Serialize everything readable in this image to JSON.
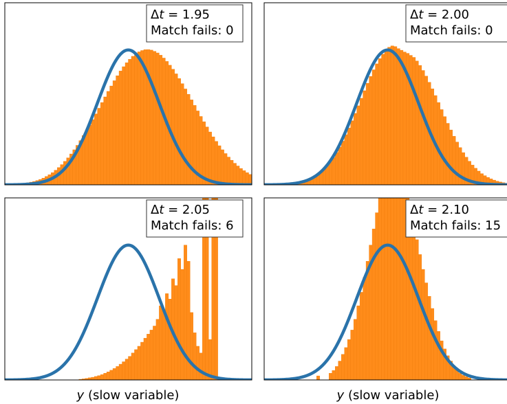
{
  "colors": {
    "histogram": "#ff8c1a",
    "histogram_edge": "#f07d0a",
    "gaussian": "#2a73aa",
    "frame": "#000000"
  },
  "chart_data": [
    {
      "type": "bar",
      "panel": "top-left",
      "annotation": {
        "dt_symbol": "Δ",
        "dt_var": "t",
        "dt_text": " = 1.95",
        "fails_text": "Match fails: 0"
      },
      "xlabel": "",
      "xlim": [
        -4,
        4
      ],
      "ylim": [
        0,
        1.35
      ],
      "gaussian": {
        "mean": 0,
        "sd": 1,
        "peak": 1.0
      },
      "histogram": {
        "x_start": -3.4,
        "bin_width": 0.1,
        "values": [
          0.012,
          0.015,
          0.02,
          0.025,
          0.032,
          0.04,
          0.05,
          0.062,
          0.075,
          0.09,
          0.108,
          0.128,
          0.15,
          0.174,
          0.2,
          0.229,
          0.26,
          0.293,
          0.328,
          0.365,
          0.403,
          0.443,
          0.484,
          0.526,
          0.568,
          0.61,
          0.652,
          0.693,
          0.733,
          0.772,
          0.809,
          0.844,
          0.876,
          0.905,
          0.931,
          0.953,
          0.972,
          0.986,
          0.996,
          1.002,
          1.003,
          0.999,
          0.99,
          0.978,
          0.961,
          0.94,
          0.915,
          0.887,
          0.857,
          0.823,
          0.788,
          0.75,
          0.711,
          0.671,
          0.63,
          0.589,
          0.548,
          0.507,
          0.468,
          0.429,
          0.392,
          0.356,
          0.322,
          0.29,
          0.26,
          0.232,
          0.206,
          0.182,
          0.16,
          0.14,
          0.121,
          0.105,
          0.09,
          0.077,
          0.065,
          0.055,
          0.045,
          0.037,
          0.03,
          0.024
        ]
      }
    },
    {
      "type": "bar",
      "panel": "top-right",
      "annotation": {
        "dt_symbol": "Δ",
        "dt_var": "t",
        "dt_text": " = 2.00",
        "fails_text": "Match fails: 0"
      },
      "xlabel": "",
      "xlim": [
        -4,
        4
      ],
      "ylim": [
        0,
        1.35
      ],
      "gaussian": {
        "mean": 0,
        "sd": 1,
        "peak": 1.0
      },
      "histogram": {
        "x_start": -3.4,
        "bin_width": 0.1,
        "values": [
          0.003,
          0.005,
          0.007,
          0.009,
          0.013,
          0.017,
          0.022,
          0.029,
          0.038,
          0.048,
          0.061,
          0.077,
          0.095,
          0.117,
          0.142,
          0.171,
          0.203,
          0.24,
          0.28,
          0.324,
          0.372,
          0.422,
          0.475,
          0.53,
          0.586,
          0.642,
          0.698,
          0.753,
          0.804,
          0.853,
          0.897,
          0.936,
          0.969,
          0.995,
          1.02,
          1.03,
          1.025,
          1.01,
          0.998,
          0.985,
          0.975,
          0.96,
          0.945,
          0.918,
          0.885,
          0.848,
          0.806,
          0.76,
          0.712,
          0.662,
          0.61,
          0.558,
          0.506,
          0.456,
          0.407,
          0.36,
          0.317,
          0.276,
          0.239,
          0.205,
          0.175,
          0.147,
          0.123,
          0.102,
          0.083,
          0.068,
          0.055,
          0.044,
          0.035,
          0.027,
          0.021,
          0.016,
          0.012,
          0.009,
          0.007,
          0.005,
          0.004,
          0.003,
          0.002,
          0.001
        ]
      }
    },
    {
      "type": "bar",
      "panel": "bottom-left",
      "annotation": {
        "dt_symbol": "Δ",
        "dt_var": "t",
        "dt_text": " = 2.05",
        "fails_text": "Match fails: 6"
      },
      "xlabel": "(slow variable)",
      "xlabel_var": "y",
      "xlim": [
        -4,
        4
      ],
      "ylim": [
        0,
        1.35
      ],
      "gaussian": {
        "mean": 0,
        "sd": 1,
        "peak": 1.0
      },
      "histogram": {
        "x_start": -1.6,
        "bin_width": 0.1,
        "values": [
          0.005,
          0.008,
          0.012,
          0.016,
          0.02,
          0.026,
          0.032,
          0.04,
          0.05,
          0.06,
          0.072,
          0.085,
          0.1,
          0.117,
          0.135,
          0.155,
          0.175,
          0.2,
          0.225,
          0.25,
          0.28,
          0.31,
          0.34,
          0.37,
          0.4,
          0.45,
          0.55,
          0.52,
          0.64,
          0.6,
          0.75,
          0.7,
          0.9,
          0.82,
          1.0,
          0.88,
          0.5,
          0.35,
          0.25,
          0.2,
          1.4,
          1.4,
          0.3,
          1.4,
          1.4,
          0.02
        ]
      }
    },
    {
      "type": "bar",
      "panel": "bottom-right",
      "annotation": {
        "dt_symbol": "Δ",
        "dt_var": "t",
        "dt_text": " = 2.10",
        "fails_text": "Match fails: 15"
      },
      "xlabel": "(slow variable)",
      "xlabel_var": "y",
      "xlim": [
        -4,
        4
      ],
      "ylim": [
        0,
        1.35
      ],
      "gaussian": {
        "mean": 0,
        "sd": 1,
        "peak": 1.0
      },
      "histogram": {
        "x_start": -2.3,
        "bin_width": 0.1,
        "values": [
          0.03,
          0.0,
          0.0,
          0.0,
          0.05,
          0.07,
          0.1,
          0.14,
          0.19,
          0.24,
          0.3,
          0.37,
          0.45,
          0.55,
          0.65,
          0.76,
          0.88,
          1.0,
          1.12,
          1.24,
          1.35,
          1.45,
          1.55,
          1.62,
          1.65,
          1.64,
          1.58,
          1.5,
          1.42,
          1.35,
          1.25,
          1.15,
          1.04,
          0.93,
          0.82,
          0.72,
          0.62,
          0.53,
          0.44,
          0.36,
          0.29,
          0.23,
          0.18,
          0.14,
          0.1,
          0.07,
          0.05,
          0.035,
          0.025,
          0.015
        ]
      }
    }
  ]
}
